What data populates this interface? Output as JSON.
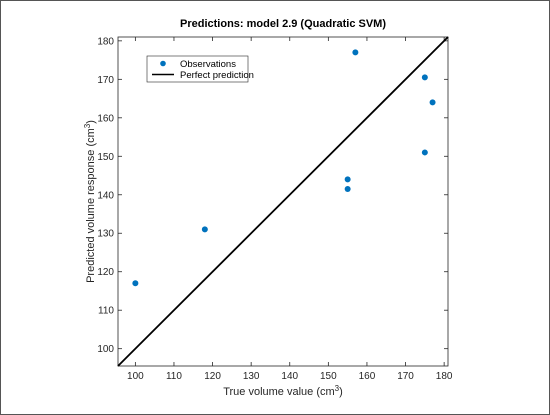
{
  "chart_data": {
    "type": "scatter",
    "title": "Predictions: model 2.9 (Quadratic SVM)",
    "xlabel": "True volume value (cm",
    "xlabel_sup": "3",
    "xlabel_end": ")",
    "ylabel": "Predicted volume response (cm",
    "ylabel_sup": "3",
    "ylabel_end": ")",
    "xlim": [
      95.5,
      181
    ],
    "ylim": [
      95.5,
      181
    ],
    "xticks": [
      100,
      110,
      120,
      130,
      140,
      150,
      160,
      170,
      180
    ],
    "yticks": [
      100,
      110,
      120,
      130,
      140,
      150,
      160,
      170,
      180
    ],
    "grid": false,
    "legend_position": "top-left",
    "series": [
      {
        "name": "Observations",
        "type": "scatter",
        "color": "#0072BD",
        "points": [
          {
            "x": 100,
            "y": 117
          },
          {
            "x": 118,
            "y": 131
          },
          {
            "x": 155,
            "y": 144
          },
          {
            "x": 155,
            "y": 141.5
          },
          {
            "x": 157,
            "y": 177
          },
          {
            "x": 175,
            "y": 170.5
          },
          {
            "x": 175,
            "y": 151
          },
          {
            "x": 177,
            "y": 164
          }
        ]
      },
      {
        "name": "Perfect prediction",
        "type": "line",
        "color": "#000000",
        "points": [
          {
            "x": 95.5,
            "y": 95.5
          },
          {
            "x": 181,
            "y": 181
          }
        ]
      }
    ]
  }
}
